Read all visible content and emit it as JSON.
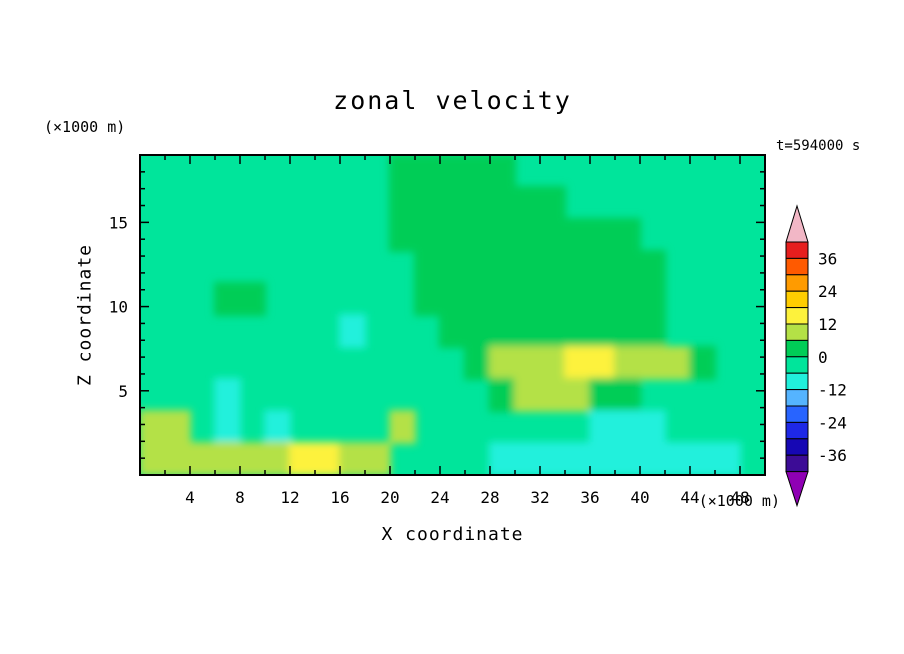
{
  "title": "zonal velocity",
  "timestamp": "t=594000 s",
  "axes": {
    "x_label": "X coordinate",
    "x_unit": "(×1000 m)",
    "y_label": "Z coordinate",
    "y_unit": "(×1000 m)",
    "x_ticks": [
      4,
      8,
      12,
      16,
      20,
      24,
      28,
      32,
      36,
      40,
      44,
      48
    ],
    "y_ticks": [
      5,
      10,
      15
    ],
    "x_minor_step": 2,
    "y_minor_step": 1
  },
  "colorbar": {
    "labels": [
      "36",
      "24",
      "12",
      "0",
      "-12",
      "-24",
      "-36"
    ],
    "arrow_top_color": "#f2b7c6",
    "arrow_bottom_color": "#8f00b4"
  },
  "chart_data": {
    "type": "heatmap",
    "title": "zonal velocity",
    "xlabel": "X coordinate (×1000 m)",
    "ylabel": "Z coordinate (×1000 m)",
    "x_range": [
      0,
      50
    ],
    "z_range": [
      0,
      19
    ],
    "level_step": 6,
    "legend_position": "right",
    "grid_lines": false,
    "bands": [
      {
        "min": 36,
        "max": 42,
        "color": "#e61e1e"
      },
      {
        "min": 30,
        "max": 36,
        "color": "#ff5a00"
      },
      {
        "min": 24,
        "max": 30,
        "color": "#ff9b00"
      },
      {
        "min": 18,
        "max": 24,
        "color": "#ffcd00"
      },
      {
        "min": 12,
        "max": 18,
        "color": "#fdf23c"
      },
      {
        "min": 6,
        "max": 12,
        "color": "#b4e146"
      },
      {
        "min": 0,
        "max": 6,
        "color": "#00cd57"
      },
      {
        "min": -6,
        "max": 0,
        "color": "#00e59b"
      },
      {
        "min": -12,
        "max": -6,
        "color": "#21f0dc"
      },
      {
        "min": -18,
        "max": -12,
        "color": "#55b4ff"
      },
      {
        "min": -24,
        "max": -18,
        "color": "#2864ff"
      },
      {
        "min": -30,
        "max": -24,
        "color": "#1e28e6"
      },
      {
        "min": -36,
        "max": -30,
        "color": "#1607b4"
      },
      {
        "min": -42,
        "max": -36,
        "color": "#3c0c96"
      }
    ],
    "grid": {
      "cols": 25,
      "rows": 10,
      "x0": 0,
      "dx": 2,
      "z_top": 19,
      "dz": 1.9,
      "base_value": -3,
      "values": [
        [
          -3,
          -3,
          -3,
          -3,
          -3,
          -3,
          -3,
          -3,
          -3,
          -3,
          3,
          3,
          3,
          3,
          3,
          -3,
          -3,
          -3,
          -3,
          -3,
          -3,
          -3,
          -3,
          -3,
          -3
        ],
        [
          -3,
          -3,
          -3,
          -3,
          -3,
          -3,
          -3,
          -3,
          -3,
          -3,
          3,
          3,
          3,
          3,
          3,
          3,
          3,
          -3,
          -3,
          -3,
          -3,
          -3,
          -3,
          -3,
          -3
        ],
        [
          -3,
          -3,
          -3,
          -3,
          -3,
          -3,
          -3,
          -3,
          -3,
          -3,
          3,
          3,
          3,
          3,
          3,
          3,
          3,
          3,
          3,
          3,
          -3,
          -3,
          -3,
          -3,
          -3
        ],
        [
          -3,
          -3,
          -3,
          -3,
          -3,
          -3,
          -3,
          -3,
          -3,
          -3,
          -3,
          3,
          3,
          3,
          3,
          3,
          3,
          3,
          3,
          3,
          3,
          -3,
          -3,
          -3,
          -3
        ],
        [
          -3,
          -3,
          -3,
          3,
          3,
          -3,
          -3,
          -3,
          -3,
          -3,
          -3,
          3,
          3,
          3,
          3,
          3,
          3,
          3,
          3,
          3,
          3,
          -3,
          -3,
          -3,
          -3
        ],
        [
          -3,
          -3,
          -3,
          -3,
          -3,
          -3,
          -3,
          -3,
          -9,
          -3,
          -3,
          -3,
          3,
          3,
          3,
          3,
          3,
          3,
          3,
          3,
          3,
          -3,
          -3,
          -3,
          -3
        ],
        [
          -3,
          -3,
          -3,
          -3,
          -3,
          -3,
          -3,
          -3,
          -3,
          -3,
          -3,
          -3,
          -3,
          3,
          9,
          9,
          9,
          15,
          15,
          9,
          9,
          9,
          3,
          -3,
          -3
        ],
        [
          -3,
          -3,
          -3,
          -9,
          -3,
          -3,
          -3,
          -3,
          -3,
          -3,
          -3,
          -3,
          -3,
          -3,
          3,
          9,
          9,
          9,
          3,
          3,
          -3,
          -3,
          -3,
          -3,
          -3
        ],
        [
          9,
          9,
          -3,
          -9,
          -3,
          -9,
          -3,
          -3,
          -3,
          -3,
          9,
          -3,
          -3,
          -3,
          -3,
          -3,
          -3,
          -3,
          -9,
          -9,
          -9,
          -3,
          -3,
          -3,
          -3
        ],
        [
          9,
          9,
          9,
          9,
          9,
          9,
          15,
          15,
          9,
          9,
          -3,
          -3,
          -3,
          -3,
          -9,
          -9,
          -9,
          -9,
          -9,
          -9,
          -9,
          -9,
          -9,
          -9,
          -3
        ]
      ]
    }
  }
}
